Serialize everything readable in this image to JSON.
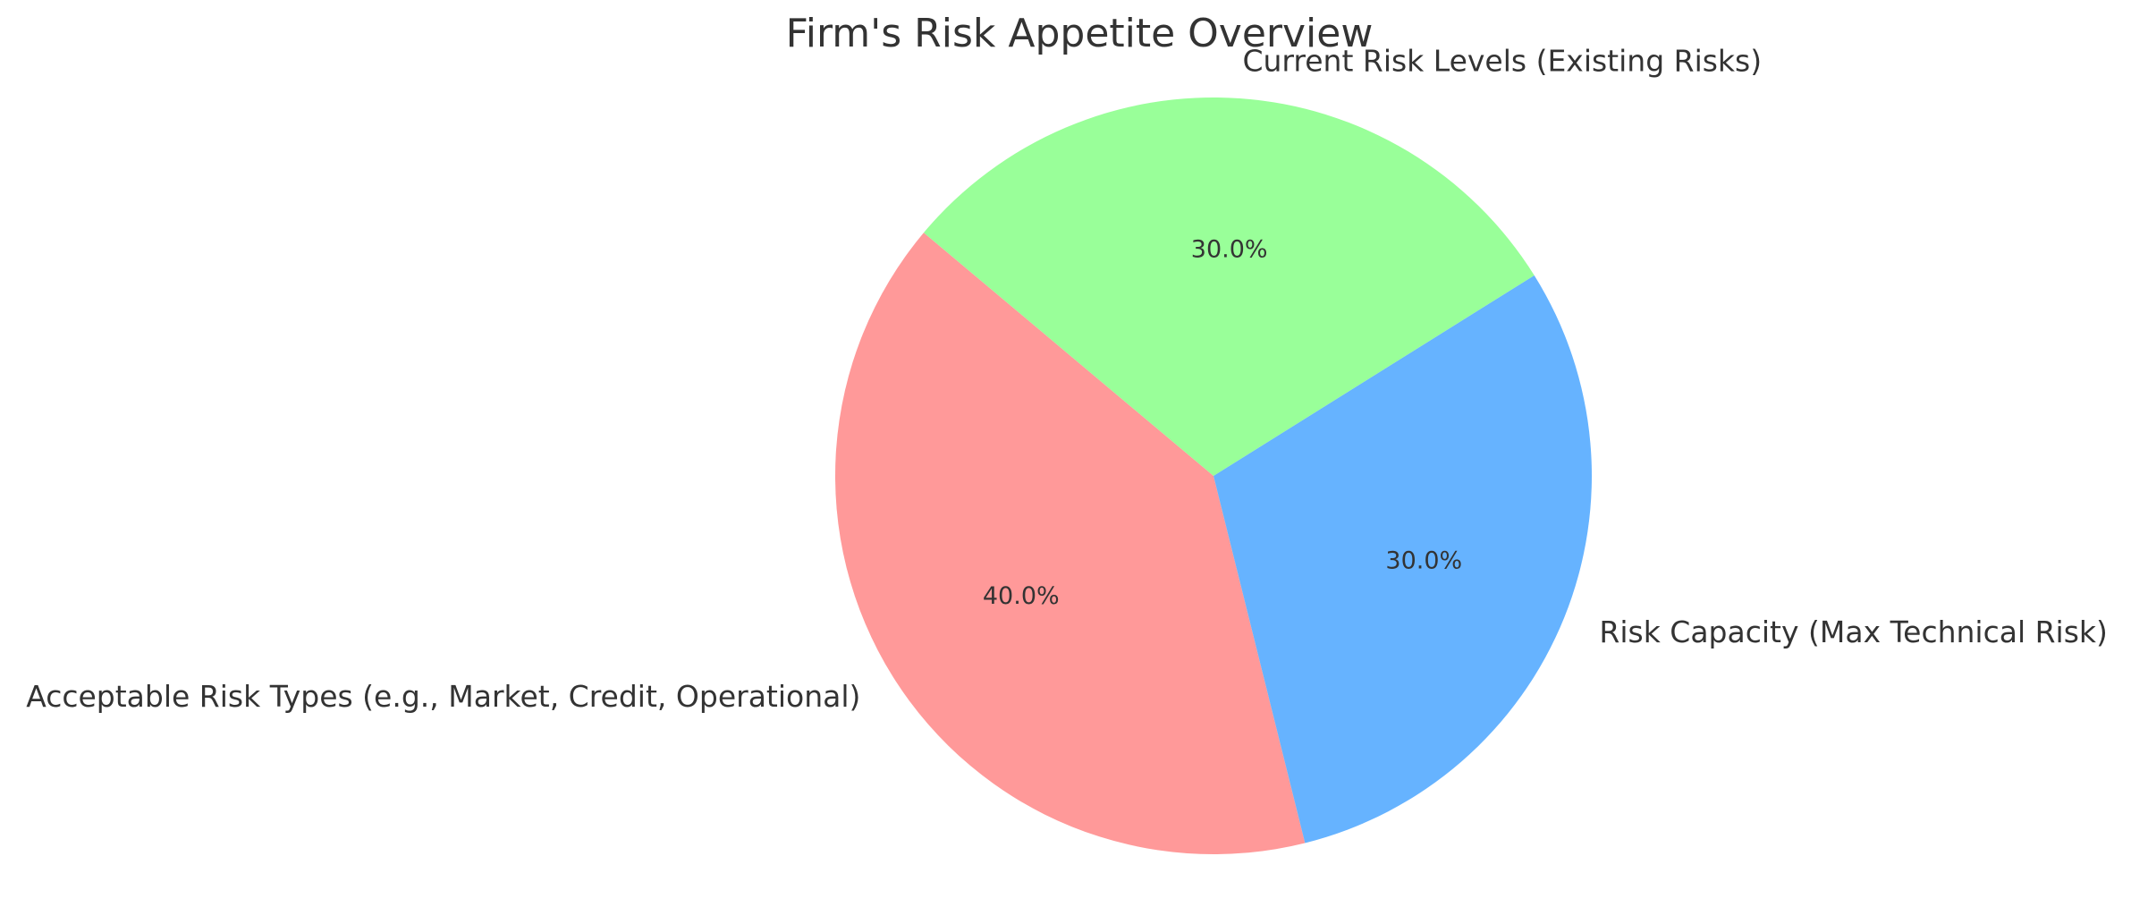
{
  "chart_data": {
    "type": "pie",
    "title": "Firm's Risk Appetite Overview",
    "start_angle_deg": 140,
    "direction": "counterclockwise",
    "slices": [
      {
        "label": "Acceptable Risk Types (e.g., Market, Credit, Operational)",
        "value": 40,
        "pct_label": "40.0%",
        "color": "#ff9999"
      },
      {
        "label": "Risk Capacity (Max Technical Risk)",
        "value": 30,
        "pct_label": "30.0%",
        "color": "#66b3ff"
      },
      {
        "label": "Current Risk Levels (Existing Risks)",
        "value": 30,
        "pct_label": "30.0%",
        "color": "#99ff99"
      }
    ],
    "legend": "none"
  }
}
